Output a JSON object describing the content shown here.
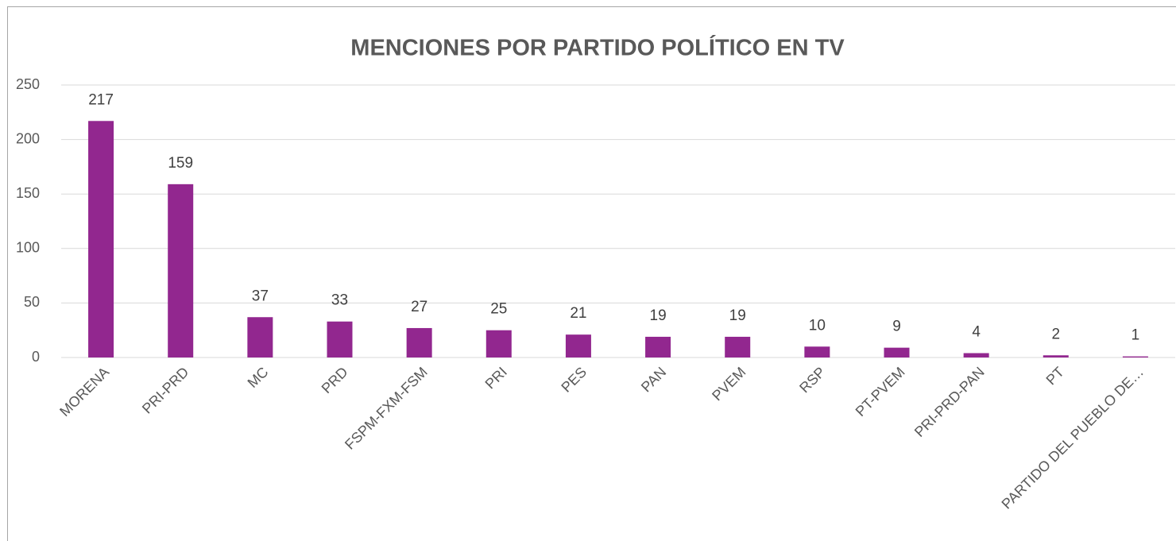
{
  "chart_data": {
    "type": "bar",
    "title": "MENCIONES POR PARTIDO POLÍTICO EN TV",
    "categories": [
      "MORENA",
      "PRI-PRD",
      "MC",
      "PRD",
      "FSPM-FXM-FSM",
      "PRI",
      "PES",
      "PAN",
      "PVEM",
      "RSP",
      "PT-PVEM",
      "PRI-PRD-PAN",
      "PT",
      "PARTIDO DEL PUEBLO DE…"
    ],
    "values": [
      217,
      159,
      37,
      33,
      27,
      25,
      21,
      19,
      19,
      10,
      9,
      4,
      2,
      1
    ],
    "color": "#92278f",
    "ylim": [
      0,
      250
    ],
    "yticks": [
      0,
      50,
      100,
      150,
      200,
      250
    ],
    "grid": true
  }
}
